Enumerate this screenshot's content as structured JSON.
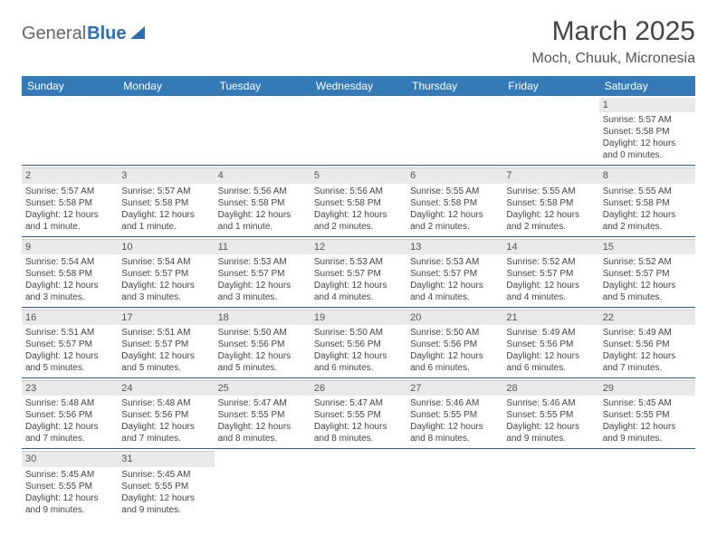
{
  "logo": {
    "text_a": "General",
    "text_b": "Blue"
  },
  "title": "March 2025",
  "location": "Moch, Chuuk, Micronesia",
  "weekday_headers": [
    "Sunday",
    "Monday",
    "Tuesday",
    "Wednesday",
    "Thursday",
    "Friday",
    "Saturday"
  ],
  "colors": {
    "header_bg": "#337ab7",
    "border": "#2a5c8f",
    "daynum_bg": "#e9e9e9"
  },
  "weeks": [
    [
      null,
      null,
      null,
      null,
      null,
      null,
      {
        "day": "1",
        "sunrise": "Sunrise: 5:57 AM",
        "sunset": "Sunset: 5:58 PM",
        "daylight1": "Daylight: 12 hours",
        "daylight2": "and 0 minutes."
      }
    ],
    [
      {
        "day": "2",
        "sunrise": "Sunrise: 5:57 AM",
        "sunset": "Sunset: 5:58 PM",
        "daylight1": "Daylight: 12 hours",
        "daylight2": "and 1 minute."
      },
      {
        "day": "3",
        "sunrise": "Sunrise: 5:57 AM",
        "sunset": "Sunset: 5:58 PM",
        "daylight1": "Daylight: 12 hours",
        "daylight2": "and 1 minute."
      },
      {
        "day": "4",
        "sunrise": "Sunrise: 5:56 AM",
        "sunset": "Sunset: 5:58 PM",
        "daylight1": "Daylight: 12 hours",
        "daylight2": "and 1 minute."
      },
      {
        "day": "5",
        "sunrise": "Sunrise: 5:56 AM",
        "sunset": "Sunset: 5:58 PM",
        "daylight1": "Daylight: 12 hours",
        "daylight2": "and 2 minutes."
      },
      {
        "day": "6",
        "sunrise": "Sunrise: 5:55 AM",
        "sunset": "Sunset: 5:58 PM",
        "daylight1": "Daylight: 12 hours",
        "daylight2": "and 2 minutes."
      },
      {
        "day": "7",
        "sunrise": "Sunrise: 5:55 AM",
        "sunset": "Sunset: 5:58 PM",
        "daylight1": "Daylight: 12 hours",
        "daylight2": "and 2 minutes."
      },
      {
        "day": "8",
        "sunrise": "Sunrise: 5:55 AM",
        "sunset": "Sunset: 5:58 PM",
        "daylight1": "Daylight: 12 hours",
        "daylight2": "and 2 minutes."
      }
    ],
    [
      {
        "day": "9",
        "sunrise": "Sunrise: 5:54 AM",
        "sunset": "Sunset: 5:58 PM",
        "daylight1": "Daylight: 12 hours",
        "daylight2": "and 3 minutes."
      },
      {
        "day": "10",
        "sunrise": "Sunrise: 5:54 AM",
        "sunset": "Sunset: 5:57 PM",
        "daylight1": "Daylight: 12 hours",
        "daylight2": "and 3 minutes."
      },
      {
        "day": "11",
        "sunrise": "Sunrise: 5:53 AM",
        "sunset": "Sunset: 5:57 PM",
        "daylight1": "Daylight: 12 hours",
        "daylight2": "and 3 minutes."
      },
      {
        "day": "12",
        "sunrise": "Sunrise: 5:53 AM",
        "sunset": "Sunset: 5:57 PM",
        "daylight1": "Daylight: 12 hours",
        "daylight2": "and 4 minutes."
      },
      {
        "day": "13",
        "sunrise": "Sunrise: 5:53 AM",
        "sunset": "Sunset: 5:57 PM",
        "daylight1": "Daylight: 12 hours",
        "daylight2": "and 4 minutes."
      },
      {
        "day": "14",
        "sunrise": "Sunrise: 5:52 AM",
        "sunset": "Sunset: 5:57 PM",
        "daylight1": "Daylight: 12 hours",
        "daylight2": "and 4 minutes."
      },
      {
        "day": "15",
        "sunrise": "Sunrise: 5:52 AM",
        "sunset": "Sunset: 5:57 PM",
        "daylight1": "Daylight: 12 hours",
        "daylight2": "and 5 minutes."
      }
    ],
    [
      {
        "day": "16",
        "sunrise": "Sunrise: 5:51 AM",
        "sunset": "Sunset: 5:57 PM",
        "daylight1": "Daylight: 12 hours",
        "daylight2": "and 5 minutes."
      },
      {
        "day": "17",
        "sunrise": "Sunrise: 5:51 AM",
        "sunset": "Sunset: 5:57 PM",
        "daylight1": "Daylight: 12 hours",
        "daylight2": "and 5 minutes."
      },
      {
        "day": "18",
        "sunrise": "Sunrise: 5:50 AM",
        "sunset": "Sunset: 5:56 PM",
        "daylight1": "Daylight: 12 hours",
        "daylight2": "and 5 minutes."
      },
      {
        "day": "19",
        "sunrise": "Sunrise: 5:50 AM",
        "sunset": "Sunset: 5:56 PM",
        "daylight1": "Daylight: 12 hours",
        "daylight2": "and 6 minutes."
      },
      {
        "day": "20",
        "sunrise": "Sunrise: 5:50 AM",
        "sunset": "Sunset: 5:56 PM",
        "daylight1": "Daylight: 12 hours",
        "daylight2": "and 6 minutes."
      },
      {
        "day": "21",
        "sunrise": "Sunrise: 5:49 AM",
        "sunset": "Sunset: 5:56 PM",
        "daylight1": "Daylight: 12 hours",
        "daylight2": "and 6 minutes."
      },
      {
        "day": "22",
        "sunrise": "Sunrise: 5:49 AM",
        "sunset": "Sunset: 5:56 PM",
        "daylight1": "Daylight: 12 hours",
        "daylight2": "and 7 minutes."
      }
    ],
    [
      {
        "day": "23",
        "sunrise": "Sunrise: 5:48 AM",
        "sunset": "Sunset: 5:56 PM",
        "daylight1": "Daylight: 12 hours",
        "daylight2": "and 7 minutes."
      },
      {
        "day": "24",
        "sunrise": "Sunrise: 5:48 AM",
        "sunset": "Sunset: 5:56 PM",
        "daylight1": "Daylight: 12 hours",
        "daylight2": "and 7 minutes."
      },
      {
        "day": "25",
        "sunrise": "Sunrise: 5:47 AM",
        "sunset": "Sunset: 5:55 PM",
        "daylight1": "Daylight: 12 hours",
        "daylight2": "and 8 minutes."
      },
      {
        "day": "26",
        "sunrise": "Sunrise: 5:47 AM",
        "sunset": "Sunset: 5:55 PM",
        "daylight1": "Daylight: 12 hours",
        "daylight2": "and 8 minutes."
      },
      {
        "day": "27",
        "sunrise": "Sunrise: 5:46 AM",
        "sunset": "Sunset: 5:55 PM",
        "daylight1": "Daylight: 12 hours",
        "daylight2": "and 8 minutes."
      },
      {
        "day": "28",
        "sunrise": "Sunrise: 5:46 AM",
        "sunset": "Sunset: 5:55 PM",
        "daylight1": "Daylight: 12 hours",
        "daylight2": "and 9 minutes."
      },
      {
        "day": "29",
        "sunrise": "Sunrise: 5:45 AM",
        "sunset": "Sunset: 5:55 PM",
        "daylight1": "Daylight: 12 hours",
        "daylight2": "and 9 minutes."
      }
    ],
    [
      {
        "day": "30",
        "sunrise": "Sunrise: 5:45 AM",
        "sunset": "Sunset: 5:55 PM",
        "daylight1": "Daylight: 12 hours",
        "daylight2": "and 9 minutes."
      },
      {
        "day": "31",
        "sunrise": "Sunrise: 5:45 AM",
        "sunset": "Sunset: 5:55 PM",
        "daylight1": "Daylight: 12 hours",
        "daylight2": "and 9 minutes."
      },
      null,
      null,
      null,
      null,
      null
    ]
  ]
}
